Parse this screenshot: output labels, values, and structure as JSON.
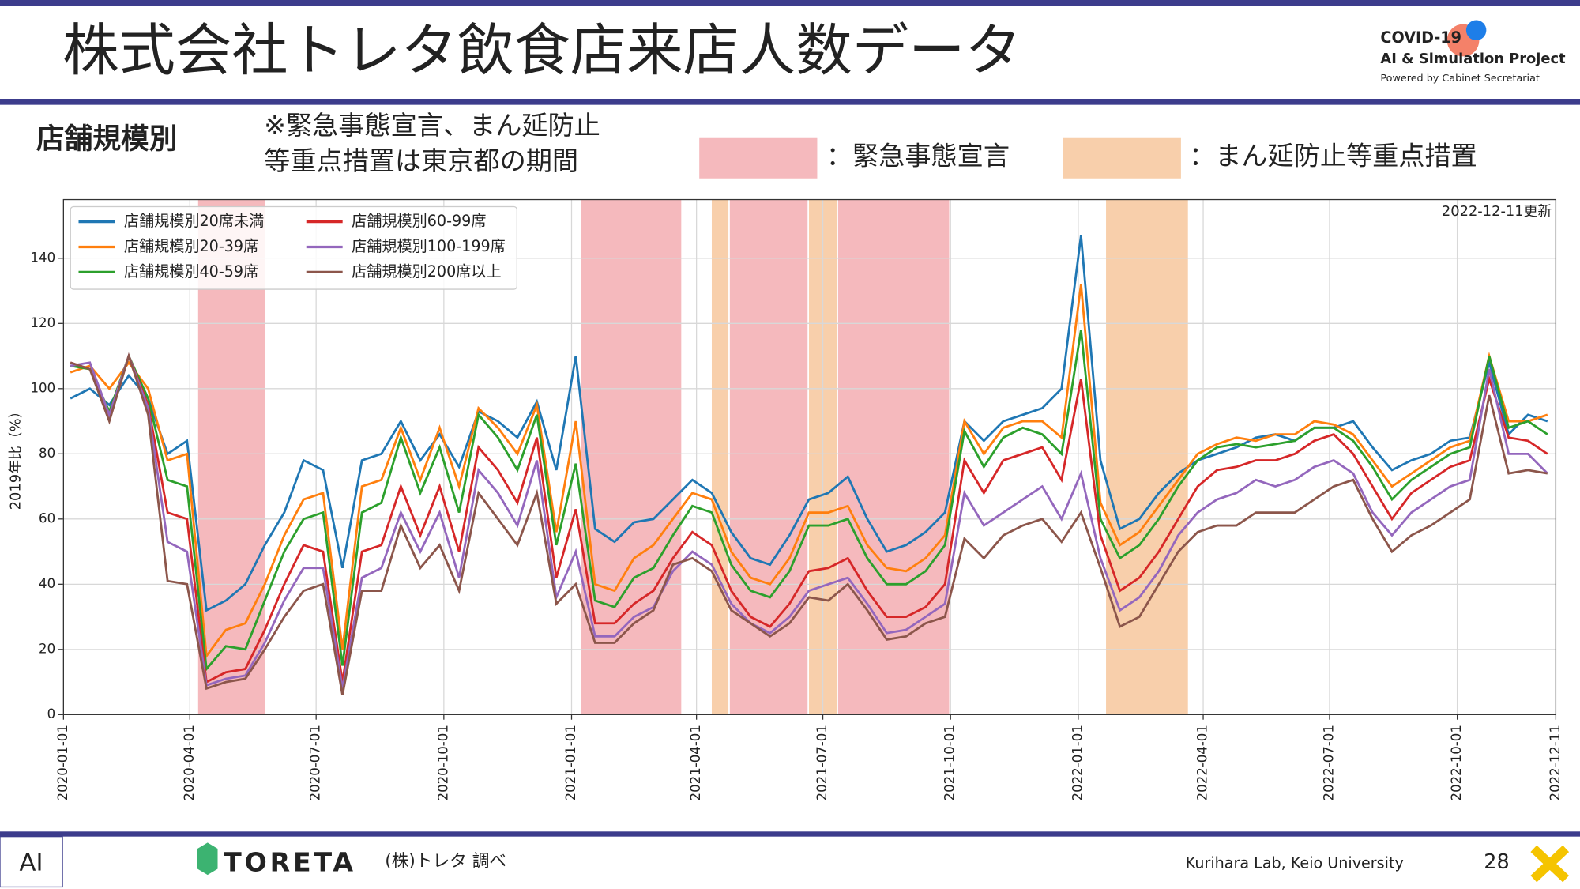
{
  "header": {
    "title": "株式会社トレタ飲食店来店人数データ",
    "logo_line1": "COVID-19",
    "logo_line2": "AI & Simulation Project",
    "logo_line3": "Powered by Cabinet Secretariat",
    "section": "店舗規模別",
    "note_line1": "※緊急事態宣言、まん延防止",
    "note_line2": "等重点措置は東京都の期間",
    "key_emergency": "：緊急事態宣言",
    "key_semi": "：まん延防止等重点措置"
  },
  "footer": {
    "brand": "TORETA",
    "source": "(株)トレタ 調べ",
    "lab": "Kurihara Lab, Keio University",
    "page": "28"
  },
  "chart_data": {
    "type": "line",
    "annotation": "2022-12-11更新",
    "ylabel": "2019年比（%）",
    "xlim": [
      "2020-01-01",
      "2022-12-11"
    ],
    "xticks": [
      "2020-01-01",
      "2020-04-01",
      "2020-07-01",
      "2020-10-01",
      "2021-01-01",
      "2021-04-01",
      "2021-07-01",
      "2021-10-01",
      "2022-01-01",
      "2022-04-01",
      "2022-07-01",
      "2022-10-01",
      "2022-12-11"
    ],
    "ylim": [
      0,
      158
    ],
    "yticks": [
      0,
      20,
      40,
      60,
      80,
      100,
      120,
      140
    ],
    "grid": true,
    "legend": "upper left",
    "emergency_color": "#f5b9bd",
    "semi_color": "#f8cfab",
    "emergency_periods": [
      [
        "2020-04-07",
        "2020-05-25"
      ],
      [
        "2021-01-08",
        "2021-03-21"
      ],
      [
        "2021-04-25",
        "2021-06-20"
      ],
      [
        "2021-07-12",
        "2021-09-30"
      ]
    ],
    "semi_periods": [
      [
        "2021-04-12",
        "2021-04-24"
      ],
      [
        "2021-06-21",
        "2021-07-11"
      ],
      [
        "2022-01-21",
        "2022-03-21"
      ]
    ],
    "x": [
      "2020-01-06",
      "2020-01-20",
      "2020-02-03",
      "2020-02-17",
      "2020-03-02",
      "2020-03-16",
      "2020-03-30",
      "2020-04-13",
      "2020-04-27",
      "2020-05-11",
      "2020-05-25",
      "2020-06-08",
      "2020-06-22",
      "2020-07-06",
      "2020-07-20",
      "2020-08-03",
      "2020-08-17",
      "2020-08-31",
      "2020-09-14",
      "2020-09-28",
      "2020-10-12",
      "2020-10-26",
      "2020-11-09",
      "2020-11-23",
      "2020-12-07",
      "2020-12-21",
      "2021-01-04",
      "2021-01-18",
      "2021-02-01",
      "2021-02-15",
      "2021-03-01",
      "2021-03-15",
      "2021-03-29",
      "2021-04-12",
      "2021-04-26",
      "2021-05-10",
      "2021-05-24",
      "2021-06-07",
      "2021-06-21",
      "2021-07-05",
      "2021-07-19",
      "2021-08-02",
      "2021-08-16",
      "2021-08-30",
      "2021-09-13",
      "2021-09-27",
      "2021-10-11",
      "2021-10-25",
      "2021-11-08",
      "2021-11-22",
      "2021-12-06",
      "2021-12-20",
      "2022-01-03",
      "2022-01-17",
      "2022-01-31",
      "2022-02-14",
      "2022-02-28",
      "2022-03-14",
      "2022-03-28",
      "2022-04-11",
      "2022-04-25",
      "2022-05-09",
      "2022-05-23",
      "2022-06-06",
      "2022-06-20",
      "2022-07-04",
      "2022-07-18",
      "2022-08-01",
      "2022-08-15",
      "2022-08-29",
      "2022-09-12",
      "2022-09-26",
      "2022-10-10",
      "2022-10-24",
      "2022-11-07",
      "2022-11-21",
      "2022-12-05"
    ],
    "series": [
      {
        "name": "店舗規模別20席未満",
        "color": "#1f77b4",
        "values": [
          97,
          100,
          95,
          104,
          97,
          80,
          84,
          32,
          35,
          40,
          52,
          62,
          78,
          75,
          45,
          78,
          80,
          90,
          78,
          86,
          76,
          93,
          90,
          85,
          96,
          75,
          110,
          57,
          53,
          59,
          60,
          66,
          72,
          68,
          56,
          48,
          46,
          55,
          66,
          68,
          73,
          60,
          50,
          52,
          56,
          62,
          90,
          84,
          90,
          92,
          94,
          100,
          147,
          78,
          57,
          60,
          68,
          74,
          78,
          80,
          82,
          85,
          86,
          84,
          88,
          88,
          90,
          82,
          75,
          78,
          80,
          84,
          85,
          108,
          86,
          92,
          90
        ]
      },
      {
        "name": "店舗規模別20-39席",
        "color": "#ff7f0e",
        "values": [
          105,
          107,
          100,
          108,
          100,
          78,
          80,
          18,
          26,
          28,
          40,
          55,
          66,
          68,
          20,
          70,
          72,
          88,
          72,
          88,
          70,
          94,
          88,
          80,
          95,
          56,
          90,
          40,
          38,
          48,
          52,
          60,
          68,
          66,
          50,
          42,
          40,
          48,
          62,
          62,
          64,
          52,
          45,
          44,
          48,
          55,
          90,
          80,
          88,
          90,
          90,
          85,
          132,
          65,
          52,
          56,
          64,
          72,
          80,
          83,
          85,
          84,
          86,
          86,
          90,
          89,
          86,
          78,
          70,
          74,
          78,
          82,
          84,
          110,
          90,
          90,
          92
        ]
      },
      {
        "name": "店舗規模別40-59席",
        "color": "#2ca02c",
        "values": [
          107,
          106,
          93,
          110,
          97,
          72,
          70,
          14,
          21,
          20,
          35,
          50,
          60,
          62,
          15,
          62,
          65,
          85,
          68,
          82,
          62,
          92,
          85,
          75,
          92,
          52,
          77,
          35,
          33,
          42,
          45,
          55,
          64,
          62,
          46,
          38,
          36,
          44,
          58,
          58,
          60,
          48,
          40,
          40,
          44,
          52,
          87,
          76,
          85,
          88,
          86,
          80,
          118,
          60,
          48,
          52,
          60,
          70,
          78,
          82,
          83,
          82,
          83,
          84,
          88,
          88,
          84,
          76,
          66,
          72,
          76,
          80,
          82,
          110,
          88,
          90,
          86
        ]
      },
      {
        "name": "店舗規模別60-99席",
        "color": "#d62728",
        "values": [
          108,
          106,
          92,
          110,
          95,
          62,
          60,
          10,
          13,
          14,
          26,
          40,
          52,
          50,
          10,
          50,
          52,
          70,
          55,
          70,
          50,
          82,
          75,
          65,
          85,
          42,
          63,
          28,
          28,
          34,
          38,
          48,
          56,
          52,
          38,
          30,
          27,
          34,
          44,
          45,
          48,
          38,
          30,
          30,
          33,
          40,
          78,
          68,
          78,
          80,
          82,
          72,
          103,
          55,
          38,
          42,
          50,
          60,
          70,
          75,
          76,
          78,
          78,
          80,
          84,
          86,
          80,
          70,
          60,
          68,
          72,
          76,
          78,
          103,
          85,
          84,
          80
        ]
      },
      {
        "name": "店舗規模別100-199席",
        "color": "#9467bd",
        "values": [
          107,
          108,
          92,
          110,
          94,
          53,
          50,
          9,
          11,
          12,
          22,
          35,
          45,
          45,
          8,
          42,
          45,
          62,
          50,
          62,
          42,
          75,
          68,
          58,
          78,
          36,
          50,
          24,
          24,
          30,
          33,
          44,
          50,
          46,
          34,
          28,
          25,
          30,
          38,
          40,
          42,
          34,
          25,
          26,
          30,
          34,
          68,
          58,
          62,
          66,
          70,
          60,
          74,
          48,
          32,
          36,
          44,
          55,
          62,
          66,
          68,
          72,
          70,
          72,
          76,
          78,
          74,
          62,
          55,
          62,
          66,
          70,
          72,
          106,
          80,
          80,
          74
        ]
      },
      {
        "name": "店舗規模別200席以上",
        "color": "#8c564b",
        "values": [
          108,
          106,
          90,
          110,
          92,
          41,
          40,
          8,
          10,
          11,
          20,
          30,
          38,
          40,
          6,
          38,
          38,
          58,
          45,
          52,
          38,
          68,
          60,
          52,
          68,
          34,
          40,
          22,
          22,
          28,
          32,
          46,
          48,
          44,
          32,
          28,
          24,
          28,
          36,
          35,
          40,
          32,
          23,
          24,
          28,
          30,
          54,
          48,
          55,
          58,
          60,
          53,
          62,
          45,
          27,
          30,
          40,
          50,
          56,
          58,
          58,
          62,
          62,
          62,
          66,
          70,
          72,
          60,
          50,
          55,
          58,
          62,
          66,
          98,
          74,
          75,
          74
        ]
      }
    ]
  }
}
